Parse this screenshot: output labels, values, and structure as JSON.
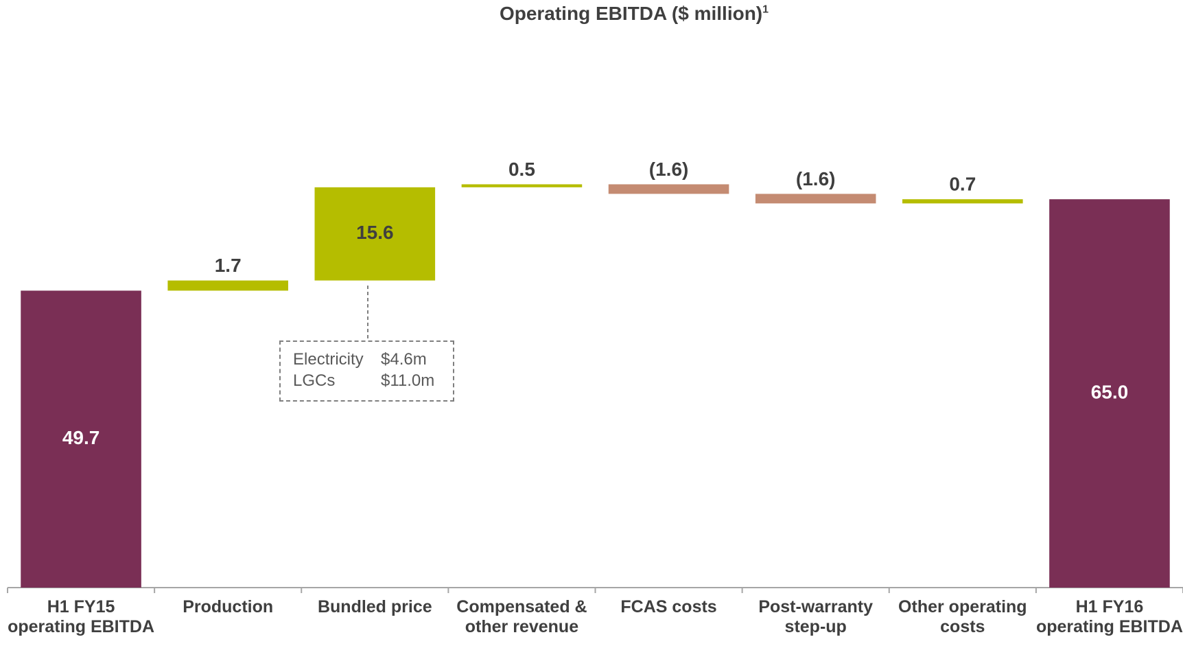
{
  "chart_data": {
    "type": "waterfall",
    "title": "Operating EBITDA ($ million)",
    "title_superscript": "1",
    "categories": [
      "H1 FY15 operating EBITDA",
      "Production",
      "Bundled price",
      "Compensated & other revenue",
      "FCAS costs",
      "Post-warranty step-up",
      "Other operating costs",
      "H1 FY16 operating EBITDA"
    ],
    "values": [
      49.7,
      1.7,
      15.6,
      0.5,
      -1.6,
      -1.6,
      0.7,
      65.0
    ],
    "value_labels": [
      "49.7",
      "1.7",
      "15.6",
      "0.5",
      "(1.6)",
      "(1.6)",
      "0.7",
      "65.0"
    ],
    "measures": [
      "total",
      "relative",
      "relative",
      "relative",
      "relative",
      "relative",
      "relative",
      "total"
    ],
    "colors": {
      "total": "#7a2f55",
      "increase": "#b5bd00",
      "decrease": "#c48b72"
    },
    "ylim": [
      0,
      98
    ],
    "annotation": {
      "rows": [
        [
          "Electricity",
          "$4.6m"
        ],
        [
          "LGCs",
          "$11.0m"
        ]
      ]
    }
  }
}
